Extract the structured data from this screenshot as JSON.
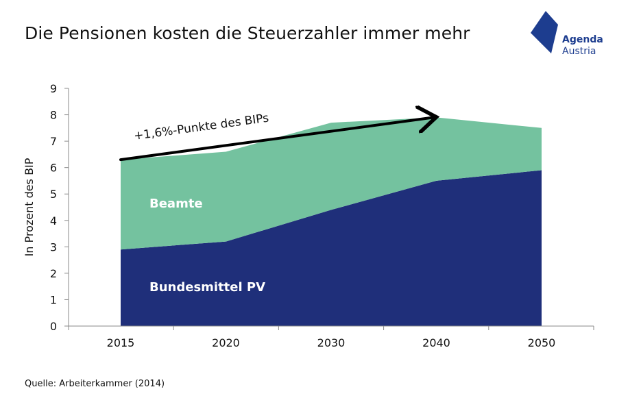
{
  "header": {
    "title": "Die Pensionen kosten die Steuerzahler immer mehr"
  },
  "logo": {
    "line1": "Agenda",
    "line2": "Austria",
    "color": "#1d3d8f"
  },
  "source": "Quelle: Arbeiterkammer (2014)",
  "chart_data": {
    "type": "area",
    "stacked": true,
    "categories": [
      "2015",
      "2020",
      "2030",
      "2040",
      "2050"
    ],
    "series": [
      {
        "name": "Bundesmittel PV",
        "values": [
          2.9,
          3.2,
          4.4,
          5.5,
          5.9
        ],
        "color": "#1f2f7a"
      },
      {
        "name": "Beamte",
        "values": [
          3.4,
          3.4,
          3.3,
          2.4,
          1.6
        ],
        "color": "#74c29f"
      }
    ],
    "ylabel": "In Prozent des BIP",
    "ylim": [
      0,
      9
    ],
    "yticks": [
      0,
      1,
      2,
      3,
      4,
      5,
      6,
      7,
      8,
      9
    ],
    "grid": false,
    "annotation": {
      "text": "+1,6%-Punkte des BIPs",
      "from": {
        "x": "2015",
        "y": 6.3
      },
      "to": {
        "x": "2040",
        "y": 7.9
      }
    }
  }
}
